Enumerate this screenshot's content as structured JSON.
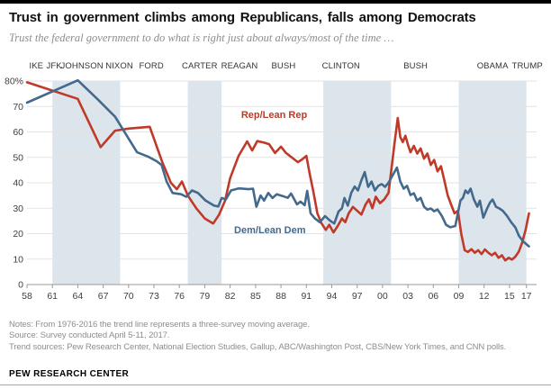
{
  "header": {
    "title": "Trust in government climbs among Republicans, falls among Democrats",
    "subtitle": "Trust the federal government to do what is right just about always/most of the time …"
  },
  "notes": {
    "line1": "Notes: From 1976-2016 the trend line represents a three-survey moving average.",
    "line2": "Source: Survey conducted April 5-11, 2017.",
    "line3": "Trend sources: Pew Research Center, National Election Studies, Gallup, ABC/Washington Post, CBS/New York Times, and CNN polls."
  },
  "footer": {
    "brand": "PEW RESEARCH CENTER"
  },
  "chart_data": {
    "type": "line",
    "title": "Trust in government climbs among Republicans, falls among Democrats",
    "subtitle": "Trust the federal government to do what is right just about always/most of the time …",
    "x_range": [
      1958,
      2018.2
    ],
    "ylim": [
      0,
      80
    ],
    "grid": "horizontal",
    "legend_position": "inline-labels",
    "colors": {
      "rep": "#bf3a28",
      "dem": "#43698c",
      "band": "#dde5ec",
      "gridline": "#e3e3e3",
      "axis": "#999999",
      "tick_text": "#404040",
      "president_text": "#333333"
    },
    "y_ticks": {
      "values": [
        0,
        10,
        20,
        30,
        40,
        50,
        60,
        70,
        80
      ],
      "labels": [
        "0",
        "10",
        "20",
        "30",
        "40",
        "50",
        "60",
        "70",
        "80%"
      ]
    },
    "x_ticks": {
      "years": [
        1958,
        1961,
        1964,
        1967,
        1970,
        1973,
        1976,
        1979,
        1982,
        1985,
        1988,
        1991,
        1994,
        1997,
        2000,
        2003,
        2006,
        2009,
        2012,
        2015,
        2017
      ],
      "labels": [
        "58",
        "61",
        "64",
        "67",
        "70",
        "73",
        "76",
        "79",
        "82",
        "85",
        "88",
        "91",
        "94",
        "97",
        "00",
        "03",
        "06",
        "09",
        "12",
        "15",
        "17"
      ]
    },
    "president_bands_years": [
      [
        1961,
        1969
      ],
      [
        1977,
        1981
      ],
      [
        1993,
        2001
      ],
      [
        2009,
        2017
      ]
    ],
    "president_labels": [
      {
        "label": "IKE",
        "year": 1959.1
      },
      {
        "label": "JFK",
        "year": 1961.2
      },
      {
        "label": "JOHNSON",
        "year": 1964.5
      },
      {
        "label": "NIXON",
        "year": 1968.9
      },
      {
        "label": "FORD",
        "year": 1972.7
      },
      {
        "label": "CARTER",
        "year": 1978.4
      },
      {
        "label": "REAGAN",
        "year": 1983.1
      },
      {
        "label": "BUSH",
        "year": 1988.3
      },
      {
        "label": "CLINTON",
        "year": 1995.1
      },
      {
        "label": "BUSH",
        "year": 2003.9
      },
      {
        "label": "OBAMA",
        "year": 2013.0
      },
      {
        "label": "TRUMP",
        "year": 2017.1
      }
    ],
    "series": [
      {
        "name": "Rep/Lean Rep",
        "color_key": "rep",
        "label_pos": {
          "year": 1987.2,
          "value": 65.5
        },
        "points": [
          [
            1958,
            79.5
          ],
          [
            1964,
            73
          ],
          [
            1966.7,
            54
          ],
          [
            1968.4,
            60.5
          ],
          [
            1970,
            61.3
          ],
          [
            1972.5,
            62
          ],
          [
            1974,
            48
          ],
          [
            1975,
            40
          ],
          [
            1975.7,
            37.5
          ],
          [
            1976.3,
            40.5
          ],
          [
            1977,
            35
          ],
          [
            1978,
            30
          ],
          [
            1979,
            26
          ],
          [
            1980,
            24
          ],
          [
            1980.7,
            27.5
          ],
          [
            1981.4,
            33
          ],
          [
            1982,
            41.8
          ],
          [
            1983,
            50.6
          ],
          [
            1984,
            56.3
          ],
          [
            1984.6,
            52.7
          ],
          [
            1985.2,
            56.4
          ],
          [
            1986,
            55.8
          ],
          [
            1986.6,
            55.2
          ],
          [
            1987.3,
            51.7
          ],
          [
            1988,
            54.2
          ],
          [
            1988.6,
            51.7
          ],
          [
            1989.3,
            49.9
          ],
          [
            1990,
            48.1
          ],
          [
            1990.5,
            49.2
          ],
          [
            1991,
            50.6
          ],
          [
            1991.4,
            43.5
          ],
          [
            1991.8,
            37
          ],
          [
            1992.3,
            28
          ],
          [
            1992.8,
            24
          ],
          [
            1993.3,
            21.5
          ],
          [
            1993.7,
            23.5
          ],
          [
            1994.2,
            20.5
          ],
          [
            1994.7,
            23
          ],
          [
            1995.2,
            26
          ],
          [
            1995.6,
            24.5
          ],
          [
            1996,
            28
          ],
          [
            1996.5,
            30.5
          ],
          [
            1997,
            29
          ],
          [
            1997.5,
            27.5
          ],
          [
            1998,
            31.5
          ],
          [
            1998.4,
            33.5
          ],
          [
            1998.8,
            30
          ],
          [
            1999.2,
            34.5
          ],
          [
            1999.7,
            32
          ],
          [
            2000.2,
            33.5
          ],
          [
            2000.7,
            36
          ],
          [
            2001,
            44
          ],
          [
            2001.4,
            55
          ],
          [
            2001.8,
            65.5
          ],
          [
            2002.1,
            58
          ],
          [
            2002.4,
            56
          ],
          [
            2002.7,
            58.5
          ],
          [
            2003,
            55
          ],
          [
            2003.3,
            52
          ],
          [
            2003.7,
            54.5
          ],
          [
            2004.1,
            51.5
          ],
          [
            2004.5,
            53.5
          ],
          [
            2004.9,
            49.5
          ],
          [
            2005.3,
            51.5
          ],
          [
            2005.7,
            47
          ],
          [
            2006.1,
            49
          ],
          [
            2006.5,
            44.5
          ],
          [
            2006.9,
            46.5
          ],
          [
            2007.3,
            41
          ],
          [
            2007.7,
            35
          ],
          [
            2008.1,
            31.5
          ],
          [
            2008.5,
            28
          ],
          [
            2008.9,
            29
          ],
          [
            2009.3,
            20
          ],
          [
            2009.7,
            13.5
          ],
          [
            2010.1,
            12.8
          ],
          [
            2010.5,
            13.9
          ],
          [
            2010.9,
            12.5
          ],
          [
            2011.3,
            13.5
          ],
          [
            2011.7,
            12
          ],
          [
            2012.1,
            13.8
          ],
          [
            2012.5,
            12.5
          ],
          [
            2012.9,
            11.5
          ],
          [
            2013.3,
            12.5
          ],
          [
            2013.7,
            10.5
          ],
          [
            2014.1,
            11.5
          ],
          [
            2014.5,
            9.5
          ],
          [
            2014.9,
            10.5
          ],
          [
            2015.3,
            9.8
          ],
          [
            2015.7,
            11
          ],
          [
            2016.1,
            13
          ],
          [
            2016.5,
            16.5
          ],
          [
            2016.9,
            21.5
          ],
          [
            2017.3,
            28
          ]
        ]
      },
      {
        "name": "Dem/Lean Dem",
        "color_key": "dem",
        "label_pos": {
          "year": 1986.7,
          "value": 20.2
        },
        "points": [
          [
            1958,
            71.5
          ],
          [
            1964,
            80.3
          ],
          [
            1966.3,
            73
          ],
          [
            1968.4,
            66
          ],
          [
            1971,
            52
          ],
          [
            1972.3,
            50.3
          ],
          [
            1973.3,
            48.5
          ],
          [
            1973.9,
            47
          ],
          [
            1974.5,
            40.5
          ],
          [
            1975.2,
            36
          ],
          [
            1976.2,
            35.5
          ],
          [
            1976.8,
            34.5
          ],
          [
            1977.5,
            37
          ],
          [
            1978.2,
            36
          ],
          [
            1979.1,
            33
          ],
          [
            1980.1,
            31
          ],
          [
            1980.6,
            30.7
          ],
          [
            1981,
            34
          ],
          [
            1981.5,
            33.5
          ],
          [
            1982.1,
            37
          ],
          [
            1983,
            37.8
          ],
          [
            1984.2,
            37.5
          ],
          [
            1984.7,
            37.7
          ],
          [
            1985.1,
            30.6
          ],
          [
            1985.6,
            35
          ],
          [
            1986,
            33
          ],
          [
            1986.5,
            36
          ],
          [
            1987,
            34
          ],
          [
            1987.5,
            35.5
          ],
          [
            1988.2,
            34.8
          ],
          [
            1988.8,
            34.1
          ],
          [
            1989.2,
            35.8
          ],
          [
            1989.9,
            31.5
          ],
          [
            1990.3,
            32.6
          ],
          [
            1990.8,
            31.2
          ],
          [
            1991.1,
            36.8
          ],
          [
            1991.5,
            28
          ],
          [
            1992,
            26
          ],
          [
            1992.6,
            24.5
          ],
          [
            1993.2,
            26.9
          ],
          [
            1993.8,
            25.1
          ],
          [
            1994.3,
            24
          ],
          [
            1994.8,
            28.7
          ],
          [
            1995.2,
            30
          ],
          [
            1995.5,
            34
          ],
          [
            1995.9,
            31
          ],
          [
            1996.3,
            36
          ],
          [
            1996.7,
            38.5
          ],
          [
            1997.1,
            37
          ],
          [
            1997.5,
            41
          ],
          [
            1997.9,
            44.2
          ],
          [
            1998.3,
            38.4
          ],
          [
            1998.7,
            40.5
          ],
          [
            1999.1,
            37
          ],
          [
            1999.5,
            38.8
          ],
          [
            1999.9,
            39.5
          ],
          [
            2000.3,
            38.4
          ],
          [
            2000.7,
            40
          ],
          [
            2001.2,
            43
          ],
          [
            2001.7,
            46
          ],
          [
            2002.1,
            40.5
          ],
          [
            2002.5,
            37.7
          ],
          [
            2002.9,
            38.8
          ],
          [
            2003.3,
            35.2
          ],
          [
            2003.7,
            35.9
          ],
          [
            2004.1,
            33
          ],
          [
            2004.5,
            34.1
          ],
          [
            2004.9,
            30.6
          ],
          [
            2005.3,
            29.5
          ],
          [
            2005.7,
            29.9
          ],
          [
            2006.1,
            28.8
          ],
          [
            2006.5,
            29.5
          ],
          [
            2007,
            27
          ],
          [
            2007.5,
            23.5
          ],
          [
            2008,
            22.5
          ],
          [
            2008.6,
            23
          ],
          [
            2009.2,
            33
          ],
          [
            2009.5,
            34.1
          ],
          [
            2009.8,
            37
          ],
          [
            2010.1,
            35.9
          ],
          [
            2010.4,
            37.7
          ],
          [
            2010.8,
            33.4
          ],
          [
            2011.2,
            30.6
          ],
          [
            2011.5,
            33
          ],
          [
            2011.9,
            26.3
          ],
          [
            2012.3,
            29.5
          ],
          [
            2012.7,
            32.3
          ],
          [
            2013,
            33.4
          ],
          [
            2013.4,
            30.6
          ],
          [
            2013.8,
            29.9
          ],
          [
            2014.2,
            29
          ],
          [
            2014.7,
            27
          ],
          [
            2015.2,
            24.5
          ],
          [
            2015.7,
            22.4
          ],
          [
            2016.1,
            19.2
          ],
          [
            2016.6,
            17
          ],
          [
            2017.3,
            15
          ]
        ]
      }
    ]
  }
}
